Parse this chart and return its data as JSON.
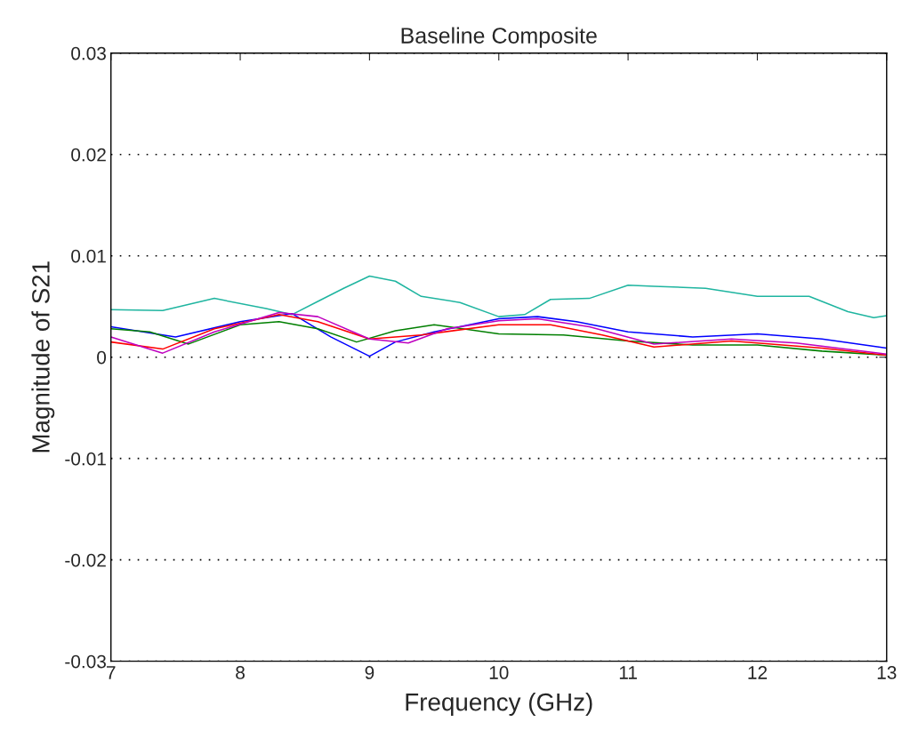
{
  "chart_data": {
    "type": "line",
    "title": "Baseline Composite",
    "xlabel": "Frequency (GHz)",
    "ylabel": "Magnitude of S21",
    "xlim": [
      7,
      13
    ],
    "ylim": [
      -0.03,
      0.03
    ],
    "xticks": [
      7,
      8,
      9,
      10,
      11,
      12,
      13
    ],
    "yticks": [
      -0.03,
      -0.02,
      -0.01,
      0,
      0.01,
      0.02,
      0.03
    ],
    "grid": "y",
    "marker": "none",
    "line_style": "solid",
    "series": [
      {
        "color": "#1fb5a0",
        "x": [
          7,
          7.4,
          7.8,
          8.2,
          8.4,
          8.6,
          8.8,
          9.0,
          9.2,
          9.4,
          9.7,
          10.0,
          10.2,
          10.4,
          10.7,
          11.0,
          11.2,
          11.6,
          12.0,
          12.4,
          12.7,
          12.9,
          13
        ],
        "values": [
          0.0047,
          0.0046,
          0.0058,
          0.0048,
          0.0042,
          0.0055,
          0.0068,
          0.008,
          0.0075,
          0.006,
          0.0054,
          0.004,
          0.0042,
          0.0057,
          0.0058,
          0.0071,
          0.007,
          0.0068,
          0.006,
          0.006,
          0.0045,
          0.0039,
          0.0041
        ]
      },
      {
        "color": "#0000ff",
        "x": [
          7,
          7.5,
          8.0,
          8.4,
          8.7,
          9.0,
          9.2,
          9.5,
          10.0,
          10.3,
          10.6,
          11.0,
          11.5,
          12.0,
          12.5,
          13
        ],
        "values": [
          0.003,
          0.002,
          0.0035,
          0.0043,
          0.002,
          0.0001,
          0.0015,
          0.0025,
          0.0038,
          0.004,
          0.0035,
          0.0025,
          0.002,
          0.0023,
          0.0018,
          0.0009
        ]
      },
      {
        "color": "#007f00",
        "x": [
          7,
          7.3,
          7.6,
          8.0,
          8.3,
          8.6,
          8.9,
          9.2,
          9.5,
          10.0,
          10.5,
          11.0,
          11.5,
          12.0,
          12.5,
          13
        ],
        "values": [
          0.0028,
          0.0025,
          0.0013,
          0.0032,
          0.0035,
          0.0028,
          0.0015,
          0.0026,
          0.0032,
          0.0023,
          0.0022,
          0.0016,
          0.0012,
          0.0012,
          0.0006,
          0.0002
        ]
      },
      {
        "color": "#ff0000",
        "x": [
          7,
          7.4,
          7.8,
          8.3,
          8.6,
          9.0,
          9.4,
          10.0,
          10.4,
          10.8,
          11.2,
          11.8,
          12.5,
          13
        ],
        "values": [
          0.0015,
          0.0008,
          0.0028,
          0.0042,
          0.0035,
          0.0018,
          0.0022,
          0.0032,
          0.0032,
          0.0022,
          0.001,
          0.0016,
          0.0009,
          0.0002
        ]
      },
      {
        "color": "#bf00bf",
        "x": [
          7,
          7.4,
          7.8,
          8.3,
          8.6,
          9.0,
          9.3,
          9.6,
          10.0,
          10.3,
          10.7,
          11.2,
          11.8,
          12.3,
          13
        ],
        "values": [
          0.002,
          0.0004,
          0.0025,
          0.0044,
          0.004,
          0.0018,
          0.0014,
          0.0028,
          0.0036,
          0.0038,
          0.003,
          0.0013,
          0.0018,
          0.0014,
          0.0003
        ]
      }
    ]
  }
}
